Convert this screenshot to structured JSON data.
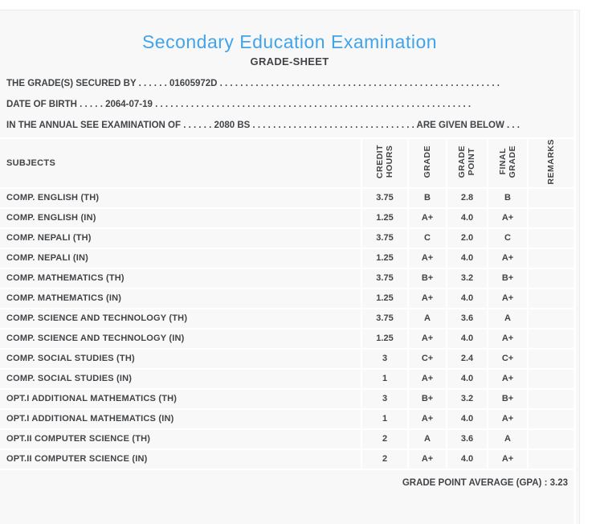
{
  "header": {
    "title": "Secondary Education Examination",
    "subtitle": "GRADE-SHEET"
  },
  "info_lines": [
    "THE GRADE(S) SECURED BY . . . . . . 01605972D . . . . . . . . . . . . . . . . . . . . . . . . . . . . . . . . . . . . . . . . . . . . . . . . . . . . . . .",
    "DATE OF BIRTH . . . . . 2064-07-19 . . . . . . . . . . . . . . . . . . . . . . . . . . . . . . . . . . . . . . . . . . . . . . . . . . . . . . . . . . . . . .",
    "IN THE ANNUAL SEE EXAMINATION OF . . . . . . 2080 BS . . . . . . . . . . . . . . . . . . . . . . . . . . . . . . . . ARE GIVEN BELOW . . ."
  ],
  "table": {
    "columns": [
      {
        "key": "subject",
        "label": "SUBJECTS"
      },
      {
        "key": "credit_hours",
        "label": "CREDIT\nHOURS"
      },
      {
        "key": "grade",
        "label": "GRADE"
      },
      {
        "key": "grade_point",
        "label": "GRADE\nPOINT"
      },
      {
        "key": "final_grade",
        "label": "FINAL\nGRADE"
      },
      {
        "key": "remarks",
        "label": "REMARKS"
      }
    ],
    "rows": [
      {
        "subject": "COMP. ENGLISH (TH)",
        "credit_hours": "3.75",
        "grade": "B",
        "grade_point": "2.8",
        "final_grade": "B",
        "remarks": ""
      },
      {
        "subject": "COMP. ENGLISH (IN)",
        "credit_hours": "1.25",
        "grade": "A+",
        "grade_point": "4.0",
        "final_grade": "A+",
        "remarks": ""
      },
      {
        "subject": "COMP. NEPALI (TH)",
        "credit_hours": "3.75",
        "grade": "C",
        "grade_point": "2.0",
        "final_grade": "C",
        "remarks": ""
      },
      {
        "subject": "COMP. NEPALI (IN)",
        "credit_hours": "1.25",
        "grade": "A+",
        "grade_point": "4.0",
        "final_grade": "A+",
        "remarks": ""
      },
      {
        "subject": "COMP. MATHEMATICS (TH)",
        "credit_hours": "3.75",
        "grade": "B+",
        "grade_point": "3.2",
        "final_grade": "B+",
        "remarks": ""
      },
      {
        "subject": "COMP. MATHEMATICS (IN)",
        "credit_hours": "1.25",
        "grade": "A+",
        "grade_point": "4.0",
        "final_grade": "A+",
        "remarks": ""
      },
      {
        "subject": "COMP. SCIENCE AND TECHNOLOGY (TH)",
        "credit_hours": "3.75",
        "grade": "A",
        "grade_point": "3.6",
        "final_grade": "A",
        "remarks": ""
      },
      {
        "subject": "COMP. SCIENCE AND TECHNOLOGY (IN)",
        "credit_hours": "1.25",
        "grade": "A+",
        "grade_point": "4.0",
        "final_grade": "A+",
        "remarks": ""
      },
      {
        "subject": "COMP. SOCIAL STUDIES (TH)",
        "credit_hours": "3",
        "grade": "C+",
        "grade_point": "2.4",
        "final_grade": "C+",
        "remarks": ""
      },
      {
        "subject": "COMP. SOCIAL STUDIES (IN)",
        "credit_hours": "1",
        "grade": "A+",
        "grade_point": "4.0",
        "final_grade": "A+",
        "remarks": ""
      },
      {
        "subject": "OPT.I ADDITIONAL MATHEMATICS (TH)",
        "credit_hours": "3",
        "grade": "B+",
        "grade_point": "3.2",
        "final_grade": "B+",
        "remarks": ""
      },
      {
        "subject": "OPT.I ADDITIONAL MATHEMATICS (IN)",
        "credit_hours": "1",
        "grade": "A+",
        "grade_point": "4.0",
        "final_grade": "A+",
        "remarks": ""
      },
      {
        "subject": "OPT.II COMPUTER SCIENCE (TH)",
        "credit_hours": "2",
        "grade": "A",
        "grade_point": "3.6",
        "final_grade": "A",
        "remarks": ""
      },
      {
        "subject": "OPT.II COMPUTER SCIENCE (IN)",
        "credit_hours": "2",
        "grade": "A+",
        "grade_point": "4.0",
        "final_grade": "A+",
        "remarks": ""
      }
    ]
  },
  "footer": {
    "gpa_label": "GRADE POINT AVERAGE (GPA) : ",
    "gpa_value": "3.23"
  },
  "colors": {
    "title_blue": "#42a4e8",
    "text": "#414447",
    "card_bg": "#f8f8f9",
    "grid_line": "#ffffff"
  }
}
